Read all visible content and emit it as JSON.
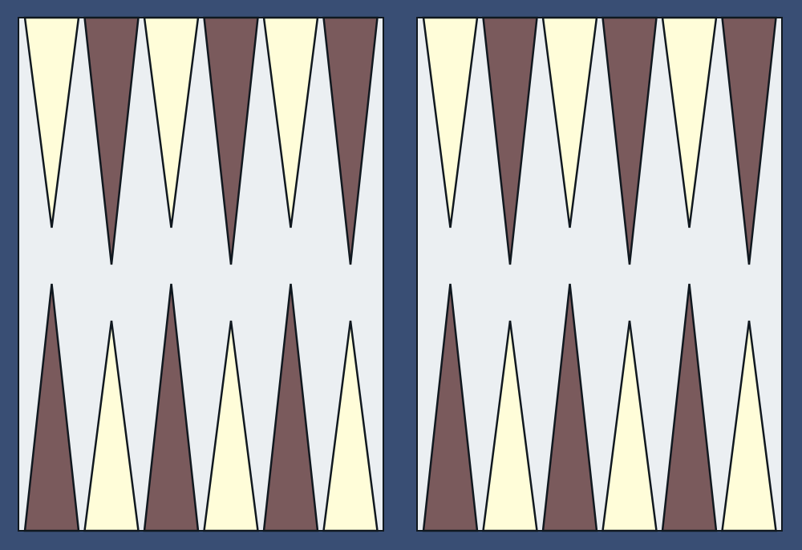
{
  "board": {
    "colors": {
      "frame": "#394e74",
      "playing_field": "#ebeff2",
      "point_light": "#fffdd9",
      "point_dark": "#7a5a5c",
      "outline": "#10181f"
    },
    "halves": [
      {
        "name": "left-half",
        "top_points": [
          "light",
          "dark",
          "light",
          "dark",
          "light",
          "dark"
        ],
        "bottom_points": [
          "dark",
          "light",
          "dark",
          "light",
          "dark",
          "light"
        ]
      },
      {
        "name": "right-half",
        "top_points": [
          "light",
          "dark",
          "light",
          "dark",
          "light",
          "dark"
        ],
        "bottom_points": [
          "dark",
          "light",
          "dark",
          "light",
          "dark",
          "light"
        ]
      }
    ],
    "checkers": []
  }
}
